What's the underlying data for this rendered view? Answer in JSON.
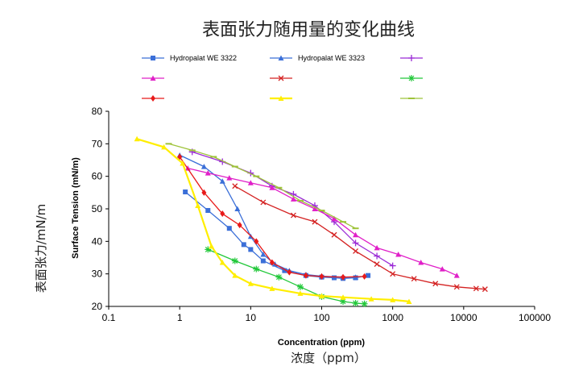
{
  "page": {
    "cn_title": "表面张力随用量的变化曲线",
    "cn_ylabel": "表面张力/mN/m",
    "cn_xlabel": "浓度（ppm）"
  },
  "chart_data": {
    "type": "line",
    "title": "",
    "xlabel": "Concentration (ppm)",
    "ylabel": "Surface Tension (mN/m)",
    "xscale": "log",
    "xlim": [
      0.1,
      100000
    ],
    "ylim": [
      20,
      80
    ],
    "xticks": [
      0.1,
      1,
      10,
      100,
      1000,
      10000,
      100000
    ],
    "xtick_labels": [
      "0.1",
      "1",
      "10",
      "100",
      "1000",
      "10000",
      "100000"
    ],
    "yticks": [
      20,
      30,
      40,
      50,
      60,
      70,
      80
    ],
    "ytick_labels": [
      "20",
      "30",
      "40",
      "50",
      "60",
      "70",
      "80"
    ],
    "grid": false,
    "legend_position": "top",
    "series": [
      {
        "name": "Hydropalat WE 3322",
        "color": "#3b6fd8",
        "marker": "square",
        "x": [
          1.2,
          2.5,
          5,
          8,
          10,
          15,
          30,
          60,
          100,
          150,
          200,
          300,
          450
        ],
        "y": [
          55.2,
          49.5,
          44,
          39,
          37.5,
          34,
          31,
          29.5,
          29,
          28.8,
          28.6,
          28.8,
          29.5
        ]
      },
      {
        "name": "Hydropalat WE 3323",
        "color": "#3b6fd8",
        "marker": "triangle",
        "x": [
          1.0,
          2.2,
          4,
          6.5,
          10,
          15,
          22,
          35,
          60,
          100,
          200,
          300
        ],
        "y": [
          66.5,
          63,
          58.5,
          50,
          41.5,
          36,
          33,
          31,
          29.8,
          29.3,
          29,
          29
        ]
      },
      {
        "name": "",
        "color": "#9b2bd6",
        "marker": "plus",
        "x": [
          1.5,
          4,
          10,
          20,
          40,
          80,
          150,
          300,
          600,
          1000
        ],
        "y": [
          67.5,
          64.5,
          61,
          57,
          54.5,
          51,
          46,
          39.5,
          35.5,
          32.5
        ]
      },
      {
        "name": "",
        "color": "#e020c8",
        "marker": "triangle",
        "x": [
          1.3,
          2.5,
          5,
          10,
          20,
          40,
          80,
          150,
          300,
          600,
          1200,
          2500,
          5000,
          8000
        ],
        "y": [
          62.5,
          61,
          59.5,
          58,
          56.5,
          53,
          50,
          47,
          42,
          38,
          36,
          33.5,
          31.5,
          29.5
        ]
      },
      {
        "name": "",
        "color": "#d42222",
        "marker": "x",
        "x": [
          6,
          15,
          40,
          80,
          150,
          300,
          600,
          1000,
          2000,
          4000,
          8000,
          15000,
          20000
        ],
        "y": [
          57,
          52,
          48,
          46,
          42,
          37,
          33,
          30,
          28.5,
          27,
          26,
          25.5,
          25.3
        ]
      },
      {
        "name": "",
        "color": "#22c83a",
        "marker": "asterisk",
        "x": [
          2.5,
          6,
          12,
          25,
          50,
          100,
          200,
          300,
          400
        ],
        "y": [
          37.5,
          34,
          31.5,
          29,
          26,
          23,
          21.5,
          21,
          20.8
        ]
      },
      {
        "name": "",
        "color": "#e81a1a",
        "marker": "diamond",
        "x": [
          1.0,
          2.2,
          4,
          7,
          12,
          20,
          35,
          60,
          100,
          200,
          400
        ],
        "y": [
          66,
          55,
          48.5,
          45,
          40,
          33.5,
          30.5,
          29.5,
          29.2,
          29,
          29.2
        ]
      },
      {
        "name": "",
        "color": "#ffee00",
        "marker": "triangle",
        "x": [
          0.25,
          0.6,
          1.1,
          1.8,
          2.8,
          4,
          6,
          10,
          20,
          50,
          100,
          200,
          500,
          1000,
          1700
        ],
        "y": [
          71.5,
          69,
          64,
          51,
          38.5,
          33.5,
          29.5,
          27,
          25.5,
          24,
          23.2,
          22.8,
          22.3,
          22,
          21.5
        ]
      },
      {
        "name": "",
        "color": "#9ec33a",
        "marker": "dash",
        "x": [
          0.7,
          1.5,
          3,
          6,
          12,
          25,
          50,
          100,
          200,
          300
        ],
        "y": [
          70,
          68,
          66,
          63,
          60,
          56.5,
          52.5,
          49.5,
          46,
          44
        ]
      }
    ]
  }
}
